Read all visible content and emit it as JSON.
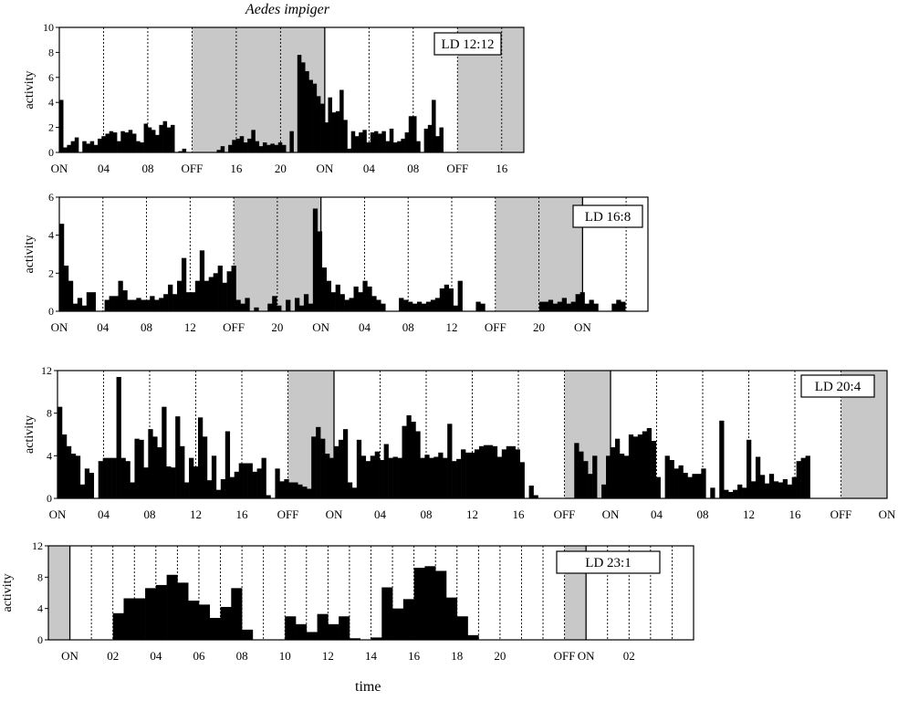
{
  "title": "Aedes impiger",
  "xlabel": "time",
  "colors": {
    "bars": "#000000",
    "dark_shade": "#c8c8c8",
    "frame": "#000000"
  },
  "chart_data": [
    {
      "type": "bar",
      "label": "LD 12:12",
      "ylabel": "activity",
      "ylim": [
        0,
        10
      ],
      "yticks": [
        0,
        2,
        4,
        6,
        8,
        10
      ],
      "x_tick_labels": [
        "ON",
        "04",
        "08",
        "OFF",
        "16",
        "20",
        "ON",
        "04",
        "08",
        "OFF",
        "16"
      ],
      "hours_start": 0,
      "hours_end": 42,
      "dark_periods": [
        [
          12,
          24
        ],
        [
          36,
          42
        ]
      ],
      "values": [
        4.2,
        0.4,
        0.6,
        0.9,
        1.2,
        0,
        0.9,
        0.7,
        0.9,
        0.6,
        1.1,
        1.3,
        1.5,
        1.7,
        1.6,
        0.9,
        1.7,
        1.6,
        1.8,
        1.5,
        0.9,
        0.8,
        2.3,
        2.0,
        1.8,
        1.4,
        2.2,
        2.5,
        2.0,
        2.2,
        0,
        0.1,
        0.3,
        0,
        0,
        0,
        0,
        0,
        0,
        0,
        0,
        0.2,
        0.5,
        0,
        0.6,
        1.0,
        1.1,
        1.3,
        0.8,
        1.1,
        1.8,
        0.9,
        0.5,
        0.8,
        0.6,
        0.7,
        0.6,
        0.8,
        0.6,
        0,
        1.7,
        0,
        7.8,
        7.2,
        6.5,
        5.8,
        5.5,
        4.5,
        3.9,
        2.4,
        4.4,
        3.2,
        3.3,
        5.0,
        2.6,
        0.3,
        1.7,
        1.3,
        1.6,
        1.8,
        0.8,
        1.6,
        1.7,
        1.5,
        1.7,
        0.9,
        1.9,
        0.8,
        0.9,
        1.1,
        1.6,
        2.9,
        2.9,
        0.9,
        0,
        1.9,
        2.2,
        4.2,
        1.3,
        2.0,
        0,
        0,
        0,
        0,
        0,
        0,
        0,
        0,
        0,
        0,
        0,
        0,
        0,
        0,
        0,
        0,
        0,
        0,
        0,
        0,
        0
      ]
    },
    {
      "type": "bar",
      "label": "LD 16:8",
      "ylabel": "activity",
      "ylim": [
        0,
        6
      ],
      "yticks": [
        0,
        2,
        4,
        6
      ],
      "x_tick_labels": [
        "ON",
        "04",
        "08",
        "12",
        "OFF",
        "20",
        "ON",
        "04",
        "08",
        "12",
        "OFF",
        "20",
        "ON"
      ],
      "hours_start": 0,
      "hours_end": 54,
      "dark_periods": [
        [
          16,
          24
        ],
        [
          40,
          48
        ]
      ],
      "values": [
        4.6,
        2.4,
        1.6,
        0.4,
        0.7,
        0.3,
        1.0,
        1.0,
        0,
        0,
        0.6,
        0.8,
        0.8,
        1.6,
        1.1,
        0.6,
        0.6,
        0.7,
        0.6,
        0.6,
        0.8,
        0.6,
        0.7,
        0.9,
        1.4,
        0.9,
        1.6,
        2.8,
        1.0,
        1.0,
        1.6,
        3.2,
        1.6,
        1.8,
        2.0,
        2.4,
        1.5,
        2.1,
        2.4,
        0.6,
        0.4,
        0.7,
        0,
        0.2,
        0,
        0,
        0.4,
        0.8,
        0.3,
        0,
        0.6,
        0,
        0.7,
        0.3,
        0.9,
        0.4,
        5.4,
        4.2,
        2.3,
        1.6,
        1.0,
        1.4,
        0.9,
        0.6,
        0.7,
        1.3,
        1.0,
        1.6,
        1.3,
        0.8,
        0.6,
        0.4,
        0,
        0,
        0,
        0.7,
        0.6,
        0.5,
        0.4,
        0.5,
        0.4,
        0.5,
        0.6,
        0.7,
        1.2,
        1.4,
        1.2,
        0.3,
        1.6,
        0,
        0,
        0,
        0.5,
        0.4,
        0,
        0,
        0,
        0,
        0,
        0,
        0,
        0,
        0,
        0,
        0,
        0,
        0.5,
        0.5,
        0.6,
        0.4,
        0.5,
        0.7,
        0.4,
        0.5,
        0.9,
        1.0,
        0.4,
        0.6,
        0.4,
        0,
        0,
        0,
        0.4,
        0.6,
        0.5,
        0,
        0,
        0,
        0,
        0
      ]
    },
    {
      "type": "bar",
      "label": "LD 20:4",
      "ylabel": "activity",
      "ylim": [
        0,
        12
      ],
      "yticks": [
        0,
        4,
        8,
        12
      ],
      "x_tick_labels": [
        "ON",
        "04",
        "08",
        "12",
        "16",
        "OFF",
        "ON",
        "04",
        "08",
        "12",
        "16",
        "OFF",
        "ON",
        "04",
        "08",
        "12",
        "16",
        "OFF",
        "ON"
      ],
      "hours_start": 0,
      "hours_end": 72,
      "dark_periods": [
        [
          20,
          24
        ],
        [
          44,
          48
        ],
        [
          68,
          72
        ]
      ],
      "values": [
        8.6,
        6.0,
        4.9,
        4.2,
        4.0,
        1.3,
        2.8,
        2.4,
        0,
        3.5,
        3.8,
        3.8,
        3.8,
        11.4,
        3.8,
        3.5,
        1.5,
        5.6,
        5.5,
        2.9,
        6.5,
        5.8,
        4.8,
        8.6,
        3.0,
        2.9,
        7.7,
        4.9,
        1.5,
        3.8,
        3.0,
        7.6,
        5.8,
        1.7,
        4.0,
        0.8,
        1.8,
        6.3,
        2.0,
        2.5,
        3.3,
        3.3,
        3.3,
        2.5,
        2.8,
        3.8,
        0.3,
        0,
        2.8,
        1.6,
        1.8,
        1.5,
        1.5,
        1.3,
        1.1,
        0.9,
        5.8,
        6.7,
        5.6,
        4.2,
        3.8,
        4.9,
        5.5,
        6.5,
        1.5,
        1.0,
        5.5,
        4.0,
        3.5,
        4.0,
        4.4,
        3.6,
        5.1,
        3.8,
        3.9,
        3.8,
        6.8,
        7.8,
        7.2,
        6.3,
        3.8,
        4.1,
        3.8,
        3.9,
        4.3,
        3.8,
        7.0,
        3.5,
        3.7,
        4.6,
        4.3,
        4.3,
        4.6,
        4.9,
        5.0,
        5.0,
        4.9,
        3.9,
        4.6,
        4.9,
        4.9,
        4.6,
        3.4,
        0,
        1.2,
        0.3,
        0,
        0,
        0,
        0,
        0,
        0,
        0,
        0,
        5.2,
        4.4,
        3.5,
        2.3,
        4.0,
        0,
        1.3,
        4.0,
        4.8,
        5.6,
        4.2,
        4.0,
        6.0,
        5.8,
        6.0,
        6.3,
        6.6,
        5.4,
        2.0,
        0,
        4.0,
        3.6,
        2.8,
        3.1,
        2.4,
        2.0,
        2.3,
        2.3,
        2.8,
        0,
        1.0,
        0,
        7.3,
        0.8,
        0.6,
        0.8,
        1.3,
        1.0,
        5.5,
        1.6,
        3.9,
        2.2,
        1.4,
        2.3,
        1.6,
        1.5,
        1.8,
        1.3,
        2.0,
        3.5,
        3.8,
        4.0,
        0,
        0,
        0,
        0,
        0,
        0,
        0,
        0,
        0,
        0,
        0,
        0,
        0,
        0,
        0,
        0,
        0
      ]
    },
    {
      "type": "bar",
      "label": "LD 23:1",
      "ylabel": "activity",
      "ylim": [
        0,
        12
      ],
      "yticks": [
        0,
        4,
        8,
        12
      ],
      "x_tick_labels": [
        "ON",
        "02",
        "04",
        "06",
        "08",
        "10",
        "12",
        "14",
        "16",
        "18",
        "20",
        "OFF",
        "ON",
        "02"
      ],
      "tick_hours": [
        0,
        2,
        4,
        6,
        8,
        10,
        12,
        14,
        16,
        18,
        20,
        23,
        24,
        26
      ],
      "hours_start": -1,
      "hours_end": 29,
      "dark_periods": [
        [
          -1,
          0
        ],
        [
          23,
          24
        ]
      ],
      "values": [
        0,
        0,
        0,
        0,
        0,
        0,
        3.4,
        5.3,
        5.3,
        6.6,
        7.0,
        8.3,
        7.3,
        5.0,
        4.5,
        2.8,
        4.2,
        6.6,
        1.3,
        0,
        0,
        0,
        3.0,
        2.0,
        1.0,
        3.3,
        2.0,
        3.0,
        0.2,
        0,
        0.3,
        6.7,
        4.0,
        5.2,
        9.2,
        9.4,
        8.8,
        5.4,
        3.0,
        0.6,
        0,
        0,
        0,
        0,
        0,
        0,
        0,
        0,
        0,
        0,
        0,
        0,
        0,
        0,
        0,
        0,
        0,
        0,
        0,
        0
      ]
    }
  ]
}
